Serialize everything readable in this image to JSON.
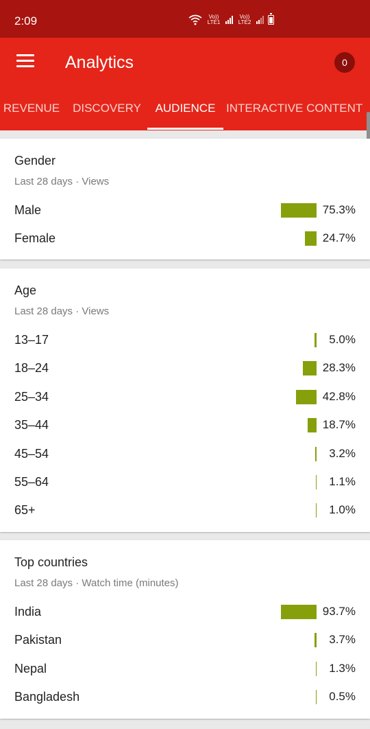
{
  "status_bar": {
    "time": "2:09",
    "sim1": "Vo)) LTE1",
    "sim2": "Vo)) LTE2"
  },
  "app_bar": {
    "title": "Analytics",
    "notification_count": "0",
    "menu_icon": "hamburger-menu-icon"
  },
  "tabs": [
    {
      "label": "REVENUE",
      "active": false
    },
    {
      "label": "DISCOVERY",
      "active": false
    },
    {
      "label": "AUDIENCE",
      "active": true
    },
    {
      "label": "INTERACTIVE CONTENT",
      "active": false
    }
  ],
  "colors": {
    "status_bar": "#a8140f",
    "app_bar": "#e52519",
    "bar": "#86a00c",
    "badge": "#8a0e0a"
  },
  "gender": {
    "title": "Gender",
    "subtitle": "Last 28 days · Views",
    "rows": [
      {
        "label": "Male",
        "pct": "75.3%",
        "value": 75.3
      },
      {
        "label": "Female",
        "pct": "24.7%",
        "value": 24.7
      }
    ]
  },
  "age": {
    "title": "Age",
    "subtitle": "Last 28 days · Views",
    "rows": [
      {
        "label": "13–17",
        "pct": "5.0%",
        "value": 5.0
      },
      {
        "label": "18–24",
        "pct": "28.3%",
        "value": 28.3
      },
      {
        "label": "25–34",
        "pct": "42.8%",
        "value": 42.8
      },
      {
        "label": "35–44",
        "pct": "18.7%",
        "value": 18.7
      },
      {
        "label": "45–54",
        "pct": "3.2%",
        "value": 3.2
      },
      {
        "label": "55–64",
        "pct": "1.1%",
        "value": 1.1
      },
      {
        "label": "65+",
        "pct": "1.0%",
        "value": 1.0
      }
    ]
  },
  "countries": {
    "title": "Top countries",
    "subtitle": "Last 28 days · Watch time (minutes)",
    "rows": [
      {
        "label": "India",
        "pct": "93.7%",
        "value": 93.7
      },
      {
        "label": "Pakistan",
        "pct": "3.7%",
        "value": 3.7
      },
      {
        "label": "Nepal",
        "pct": "1.3%",
        "value": 1.3
      },
      {
        "label": "Bangladesh",
        "pct": "0.5%",
        "value": 0.5
      }
    ]
  }
}
